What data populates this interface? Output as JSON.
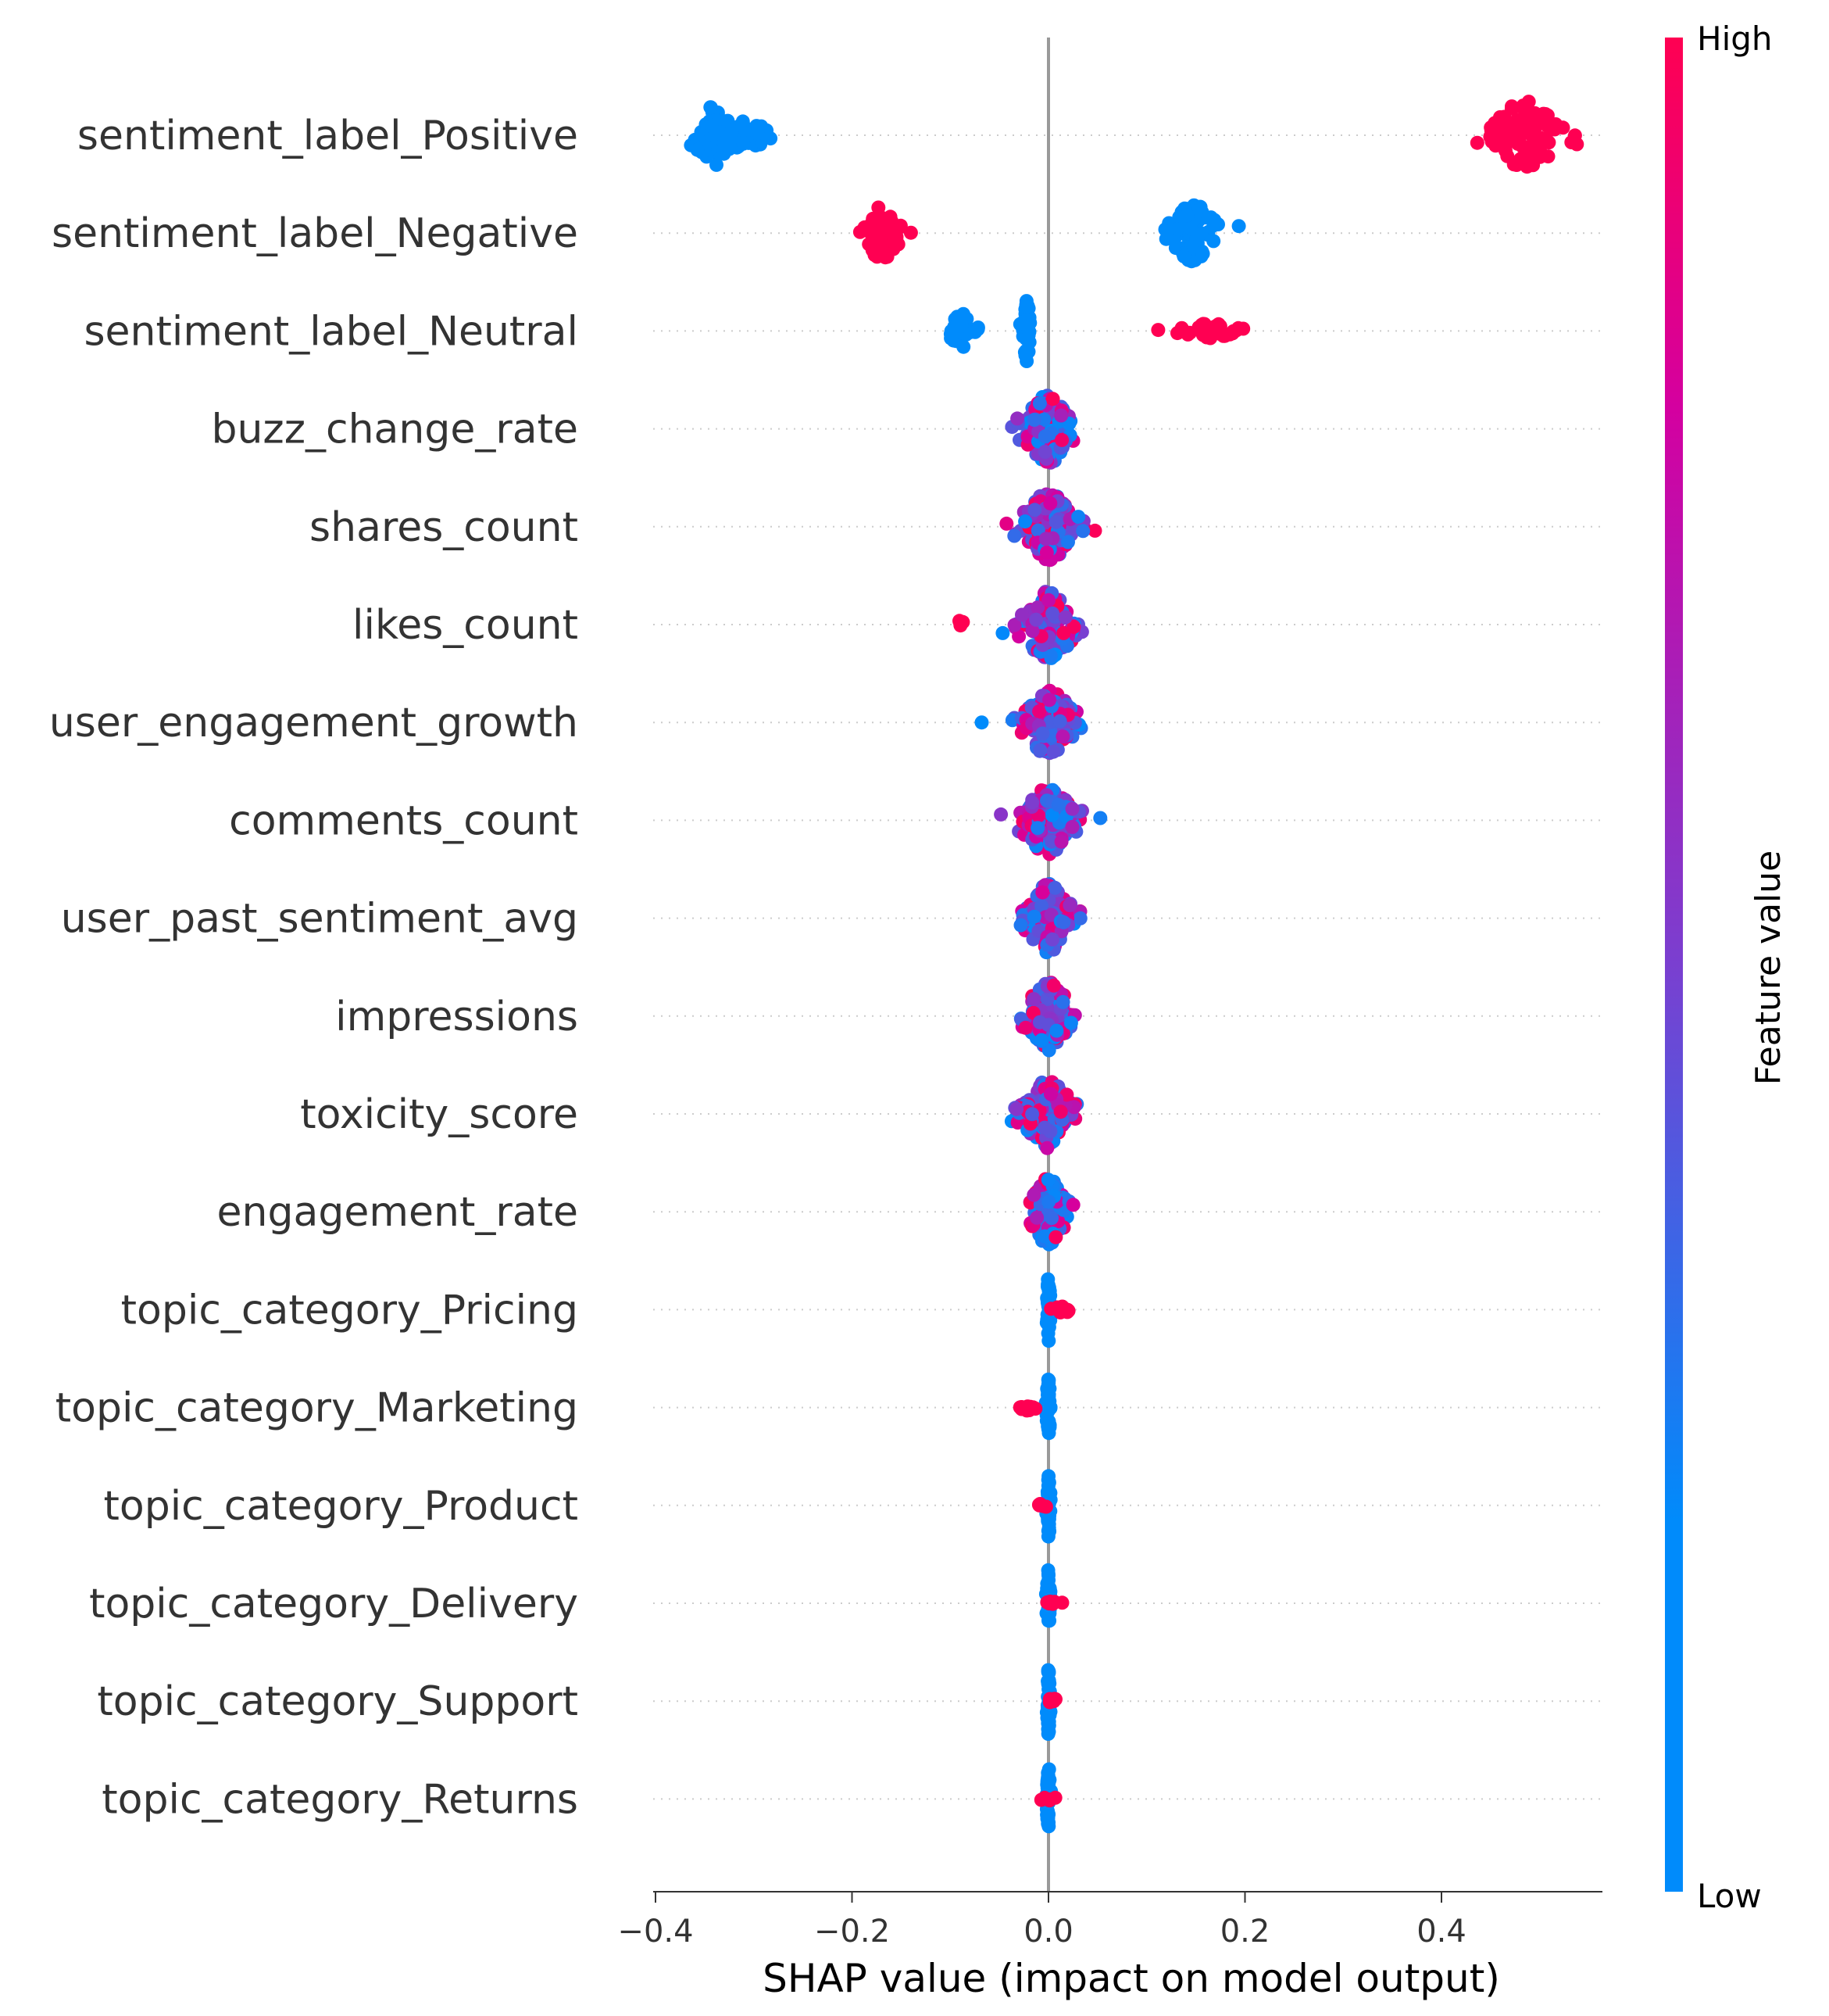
{
  "chart_data": {
    "type": "scatter",
    "subtype": "shap-beeswarm-summary",
    "title": "",
    "xlabel": "SHAP value (impact on model output)",
    "ylabel": "",
    "xlim": [
      -0.4,
      0.56
    ],
    "x_ticks": [
      -0.4,
      -0.2,
      0.0,
      0.2,
      0.4
    ],
    "x_tick_labels": [
      "−0.4",
      "−0.2",
      "0.0",
      "0.2",
      "0.4"
    ],
    "colorbar": {
      "label": "Feature value",
      "high_label": "High",
      "low_label": "Low",
      "high_color": "#ff0052",
      "low_color": "#008bfb"
    },
    "features": [
      {
        "name": "sentiment_label_Positive",
        "clusters": [
          {
            "x": -0.34,
            "spread": 0.012,
            "width": 0.7,
            "n": 60,
            "color": "low"
          },
          {
            "x": -0.31,
            "spread": 0.018,
            "width": 0.35,
            "n": 35,
            "color": "low"
          },
          {
            "x": 0.485,
            "spread": 0.02,
            "width": 0.8,
            "n": 90,
            "color": "high"
          }
        ]
      },
      {
        "name": "sentiment_label_Negative",
        "clusters": [
          {
            "x": -0.17,
            "spread": 0.01,
            "width": 0.65,
            "n": 55,
            "color": "high"
          },
          {
            "x": 0.148,
            "spread": 0.012,
            "width": 0.75,
            "n": 70,
            "color": "low"
          }
        ]
      },
      {
        "name": "sentiment_label_Neutral",
        "clusters": [
          {
            "x": -0.088,
            "spread": 0.008,
            "width": 0.4,
            "n": 30,
            "color": "low"
          },
          {
            "x": -0.022,
            "spread": 0.002,
            "width": 0.75,
            "n": 40,
            "color": "low"
          },
          {
            "x": 0.165,
            "spread": 0.016,
            "width": 0.18,
            "n": 40,
            "color": "high"
          }
        ]
      },
      {
        "name": "buzz_change_rate",
        "clusters": [
          {
            "x": 0.0,
            "spread": 0.014,
            "width": 0.8,
            "n": 130,
            "color": "mixed"
          }
        ]
      },
      {
        "name": "shares_count",
        "clusters": [
          {
            "x": 0.0,
            "spread": 0.015,
            "width": 0.8,
            "n": 130,
            "color": "mixed"
          }
        ]
      },
      {
        "name": "likes_count",
        "clusters": [
          {
            "x": 0.0,
            "spread": 0.016,
            "width": 0.8,
            "n": 130,
            "color": "mixed"
          },
          {
            "x": -0.09,
            "spread": 0.003,
            "width": 0.1,
            "n": 4,
            "color": "high"
          }
        ]
      },
      {
        "name": "user_engagement_growth",
        "clusters": [
          {
            "x": 0.0,
            "spread": 0.014,
            "width": 0.8,
            "n": 130,
            "color": "mixed"
          },
          {
            "x": -0.068,
            "spread": 0.0,
            "width": 0.0,
            "n": 1,
            "color": "low"
          }
        ]
      },
      {
        "name": "comments_count",
        "clusters": [
          {
            "x": 0.0,
            "spread": 0.015,
            "width": 0.8,
            "n": 130,
            "color": "mixed"
          }
        ]
      },
      {
        "name": "user_past_sentiment_avg",
        "clusters": [
          {
            "x": 0.0,
            "spread": 0.013,
            "width": 0.8,
            "n": 130,
            "color": "mixed"
          }
        ]
      },
      {
        "name": "impressions",
        "clusters": [
          {
            "x": 0.0,
            "spread": 0.013,
            "width": 0.8,
            "n": 130,
            "color": "mixed"
          }
        ]
      },
      {
        "name": "toxicity_score",
        "clusters": [
          {
            "x": 0.0,
            "spread": 0.014,
            "width": 0.8,
            "n": 130,
            "color": "mixed"
          }
        ]
      },
      {
        "name": "engagement_rate",
        "clusters": [
          {
            "x": 0.0,
            "spread": 0.01,
            "width": 0.8,
            "n": 120,
            "color": "lowmix"
          }
        ]
      },
      {
        "name": "topic_category_Pricing",
        "clusters": [
          {
            "x": 0.0,
            "spread": 0.001,
            "width": 0.8,
            "n": 40,
            "color": "low"
          },
          {
            "x": 0.015,
            "spread": 0.006,
            "width": 0.08,
            "n": 14,
            "color": "high"
          }
        ]
      },
      {
        "name": "topic_category_Marketing",
        "clusters": [
          {
            "x": 0.0,
            "spread": 0.001,
            "width": 0.8,
            "n": 40,
            "color": "low"
          },
          {
            "x": -0.022,
            "spread": 0.005,
            "width": 0.08,
            "n": 12,
            "color": "high"
          }
        ]
      },
      {
        "name": "topic_category_Product",
        "clusters": [
          {
            "x": 0.0,
            "spread": 0.001,
            "width": 0.8,
            "n": 40,
            "color": "low"
          },
          {
            "x": -0.006,
            "spread": 0.004,
            "width": 0.06,
            "n": 5,
            "color": "high"
          }
        ]
      },
      {
        "name": "topic_category_Delivery",
        "clusters": [
          {
            "x": 0.0,
            "spread": 0.001,
            "width": 0.8,
            "n": 40,
            "color": "low"
          },
          {
            "x": 0.006,
            "spread": 0.005,
            "width": 0.06,
            "n": 6,
            "color": "high"
          }
        ]
      },
      {
        "name": "topic_category_Support",
        "clusters": [
          {
            "x": 0.0,
            "spread": 0.001,
            "width": 0.8,
            "n": 40,
            "color": "low"
          },
          {
            "x": 0.004,
            "spread": 0.005,
            "width": 0.06,
            "n": 6,
            "color": "high"
          }
        ]
      },
      {
        "name": "topic_category_Returns",
        "clusters": [
          {
            "x": 0.0,
            "spread": 0.001,
            "width": 0.8,
            "n": 40,
            "color": "low"
          },
          {
            "x": 0.0,
            "spread": 0.005,
            "width": 0.06,
            "n": 5,
            "color": "high"
          }
        ]
      }
    ]
  }
}
